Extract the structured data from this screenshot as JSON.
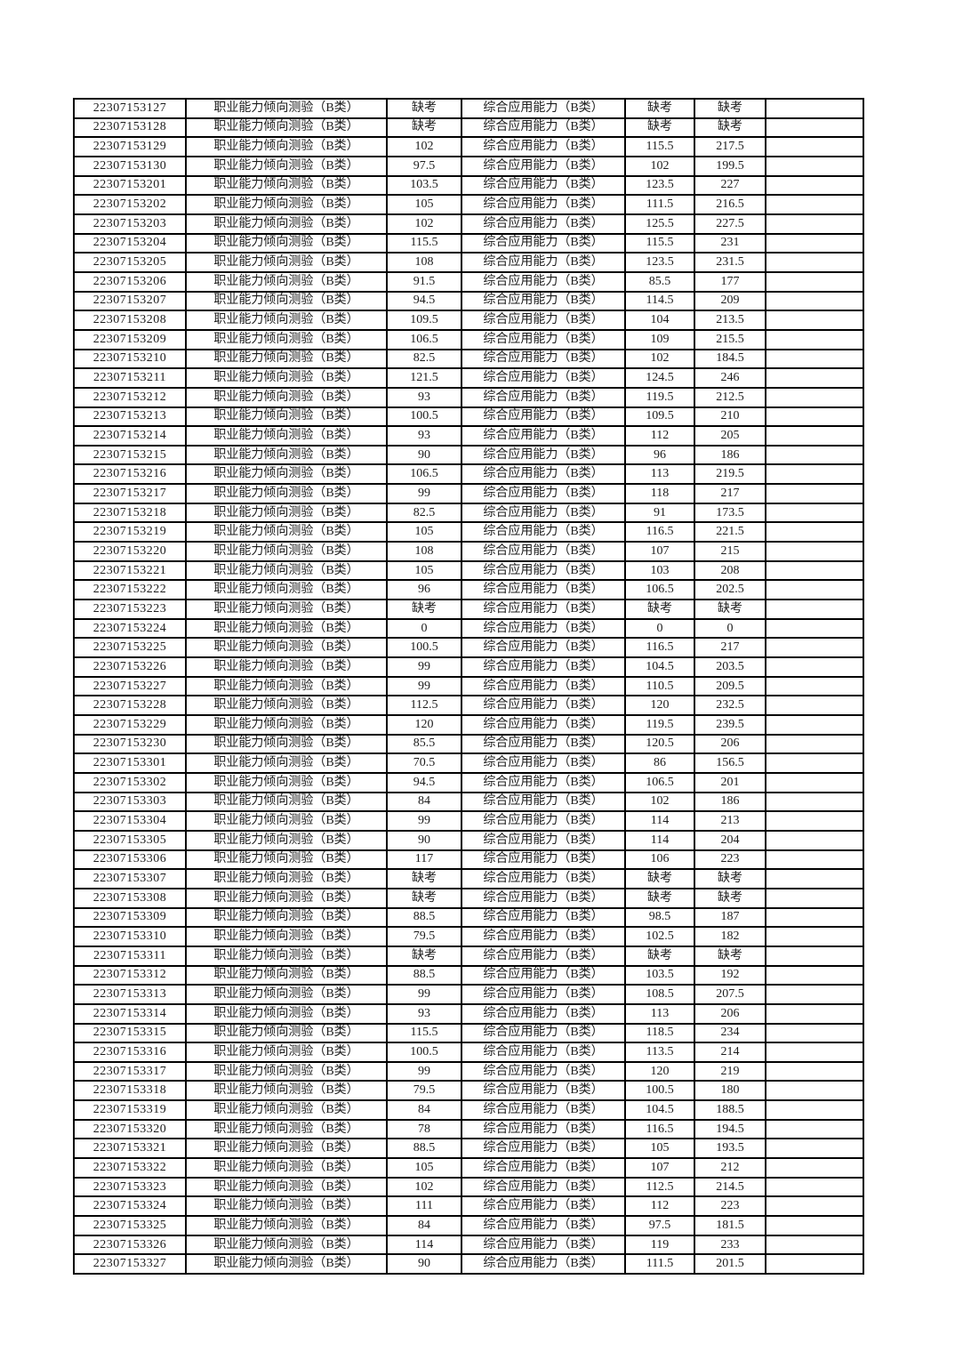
{
  "page": {
    "background": "#ffffff"
  },
  "table": {
    "aptitude_label": "职业能力倾向测验（B类）",
    "comprehensive_label": "综合应用能力（B类）",
    "absent_label": "缺考",
    "border_color": "#000000",
    "text_color": "#1c1c1c",
    "rows": [
      {
        "id": "22307153127",
        "aptitude_score": "缺考",
        "comprehensive_score": "缺考",
        "total": "缺考"
      },
      {
        "id": "22307153128",
        "aptitude_score": "缺考",
        "comprehensive_score": "缺考",
        "total": "缺考"
      },
      {
        "id": "22307153129",
        "aptitude_score": "102",
        "comprehensive_score": "115.5",
        "total": "217.5"
      },
      {
        "id": "22307153130",
        "aptitude_score": "97.5",
        "comprehensive_score": "102",
        "total": "199.5"
      },
      {
        "id": "22307153201",
        "aptitude_score": "103.5",
        "comprehensive_score": "123.5",
        "total": "227"
      },
      {
        "id": "22307153202",
        "aptitude_score": "105",
        "comprehensive_score": "111.5",
        "total": "216.5"
      },
      {
        "id": "22307153203",
        "aptitude_score": "102",
        "comprehensive_score": "125.5",
        "total": "227.5"
      },
      {
        "id": "22307153204",
        "aptitude_score": "115.5",
        "comprehensive_score": "115.5",
        "total": "231"
      },
      {
        "id": "22307153205",
        "aptitude_score": "108",
        "comprehensive_score": "123.5",
        "total": "231.5"
      },
      {
        "id": "22307153206",
        "aptitude_score": "91.5",
        "comprehensive_score": "85.5",
        "total": "177"
      },
      {
        "id": "22307153207",
        "aptitude_score": "94.5",
        "comprehensive_score": "114.5",
        "total": "209"
      },
      {
        "id": "22307153208",
        "aptitude_score": "109.5",
        "comprehensive_score": "104",
        "total": "213.5"
      },
      {
        "id": "22307153209",
        "aptitude_score": "106.5",
        "comprehensive_score": "109",
        "total": "215.5"
      },
      {
        "id": "22307153210",
        "aptitude_score": "82.5",
        "comprehensive_score": "102",
        "total": "184.5"
      },
      {
        "id": "22307153211",
        "aptitude_score": "121.5",
        "comprehensive_score": "124.5",
        "total": "246"
      },
      {
        "id": "22307153212",
        "aptitude_score": "93",
        "comprehensive_score": "119.5",
        "total": "212.5"
      },
      {
        "id": "22307153213",
        "aptitude_score": "100.5",
        "comprehensive_score": "109.5",
        "total": "210"
      },
      {
        "id": "22307153214",
        "aptitude_score": "93",
        "comprehensive_score": "112",
        "total": "205"
      },
      {
        "id": "22307153215",
        "aptitude_score": "90",
        "comprehensive_score": "96",
        "total": "186"
      },
      {
        "id": "22307153216",
        "aptitude_score": "106.5",
        "comprehensive_score": "113",
        "total": "219.5"
      },
      {
        "id": "22307153217",
        "aptitude_score": "99",
        "comprehensive_score": "118",
        "total": "217"
      },
      {
        "id": "22307153218",
        "aptitude_score": "82.5",
        "comprehensive_score": "91",
        "total": "173.5"
      },
      {
        "id": "22307153219",
        "aptitude_score": "105",
        "comprehensive_score": "116.5",
        "total": "221.5"
      },
      {
        "id": "22307153220",
        "aptitude_score": "108",
        "comprehensive_score": "107",
        "total": "215"
      },
      {
        "id": "22307153221",
        "aptitude_score": "105",
        "comprehensive_score": "103",
        "total": "208"
      },
      {
        "id": "22307153222",
        "aptitude_score": "96",
        "comprehensive_score": "106.5",
        "total": "202.5"
      },
      {
        "id": "22307153223",
        "aptitude_score": "缺考",
        "comprehensive_score": "缺考",
        "total": "缺考"
      },
      {
        "id": "22307153224",
        "aptitude_score": "0",
        "comprehensive_score": "0",
        "total": "0"
      },
      {
        "id": "22307153225",
        "aptitude_score": "100.5",
        "comprehensive_score": "116.5",
        "total": "217"
      },
      {
        "id": "22307153226",
        "aptitude_score": "99",
        "comprehensive_score": "104.5",
        "total": "203.5"
      },
      {
        "id": "22307153227",
        "aptitude_score": "99",
        "comprehensive_score": "110.5",
        "total": "209.5"
      },
      {
        "id": "22307153228",
        "aptitude_score": "112.5",
        "comprehensive_score": "120",
        "total": "232.5"
      },
      {
        "id": "22307153229",
        "aptitude_score": "120",
        "comprehensive_score": "119.5",
        "total": "239.5"
      },
      {
        "id": "22307153230",
        "aptitude_score": "85.5",
        "comprehensive_score": "120.5",
        "total": "206"
      },
      {
        "id": "22307153301",
        "aptitude_score": "70.5",
        "comprehensive_score": "86",
        "total": "156.5"
      },
      {
        "id": "22307153302",
        "aptitude_score": "94.5",
        "comprehensive_score": "106.5",
        "total": "201"
      },
      {
        "id": "22307153303",
        "aptitude_score": "84",
        "comprehensive_score": "102",
        "total": "186"
      },
      {
        "id": "22307153304",
        "aptitude_score": "99",
        "comprehensive_score": "114",
        "total": "213"
      },
      {
        "id": "22307153305",
        "aptitude_score": "90",
        "comprehensive_score": "114",
        "total": "204"
      },
      {
        "id": "22307153306",
        "aptitude_score": "117",
        "comprehensive_score": "106",
        "total": "223"
      },
      {
        "id": "22307153307",
        "aptitude_score": "缺考",
        "comprehensive_score": "缺考",
        "total": "缺考"
      },
      {
        "id": "22307153308",
        "aptitude_score": "缺考",
        "comprehensive_score": "缺考",
        "total": "缺考"
      },
      {
        "id": "22307153309",
        "aptitude_score": "88.5",
        "comprehensive_score": "98.5",
        "total": "187"
      },
      {
        "id": "22307153310",
        "aptitude_score": "79.5",
        "comprehensive_score": "102.5",
        "total": "182"
      },
      {
        "id": "22307153311",
        "aptitude_score": "缺考",
        "comprehensive_score": "缺考",
        "total": "缺考"
      },
      {
        "id": "22307153312",
        "aptitude_score": "88.5",
        "comprehensive_score": "103.5",
        "total": "192"
      },
      {
        "id": "22307153313",
        "aptitude_score": "99",
        "comprehensive_score": "108.5",
        "total": "207.5"
      },
      {
        "id": "22307153314",
        "aptitude_score": "93",
        "comprehensive_score": "113",
        "total": "206"
      },
      {
        "id": "22307153315",
        "aptitude_score": "115.5",
        "comprehensive_score": "118.5",
        "total": "234"
      },
      {
        "id": "22307153316",
        "aptitude_score": "100.5",
        "comprehensive_score": "113.5",
        "total": "214"
      },
      {
        "id": "22307153317",
        "aptitude_score": "99",
        "comprehensive_score": "120",
        "total": "219"
      },
      {
        "id": "22307153318",
        "aptitude_score": "79.5",
        "comprehensive_score": "100.5",
        "total": "180"
      },
      {
        "id": "22307153319",
        "aptitude_score": "84",
        "comprehensive_score": "104.5",
        "total": "188.5"
      },
      {
        "id": "22307153320",
        "aptitude_score": "78",
        "comprehensive_score": "116.5",
        "total": "194.5"
      },
      {
        "id": "22307153321",
        "aptitude_score": "88.5",
        "comprehensive_score": "105",
        "total": "193.5"
      },
      {
        "id": "22307153322",
        "aptitude_score": "105",
        "comprehensive_score": "107",
        "total": "212"
      },
      {
        "id": "22307153323",
        "aptitude_score": "102",
        "comprehensive_score": "112.5",
        "total": "214.5"
      },
      {
        "id": "22307153324",
        "aptitude_score": "111",
        "comprehensive_score": "112",
        "total": "223"
      },
      {
        "id": "22307153325",
        "aptitude_score": "84",
        "comprehensive_score": "97.5",
        "total": "181.5"
      },
      {
        "id": "22307153326",
        "aptitude_score": "114",
        "comprehensive_score": "119",
        "total": "233"
      },
      {
        "id": "22307153327",
        "aptitude_score": "90",
        "comprehensive_score": "111.5",
        "total": "201.5"
      }
    ]
  }
}
